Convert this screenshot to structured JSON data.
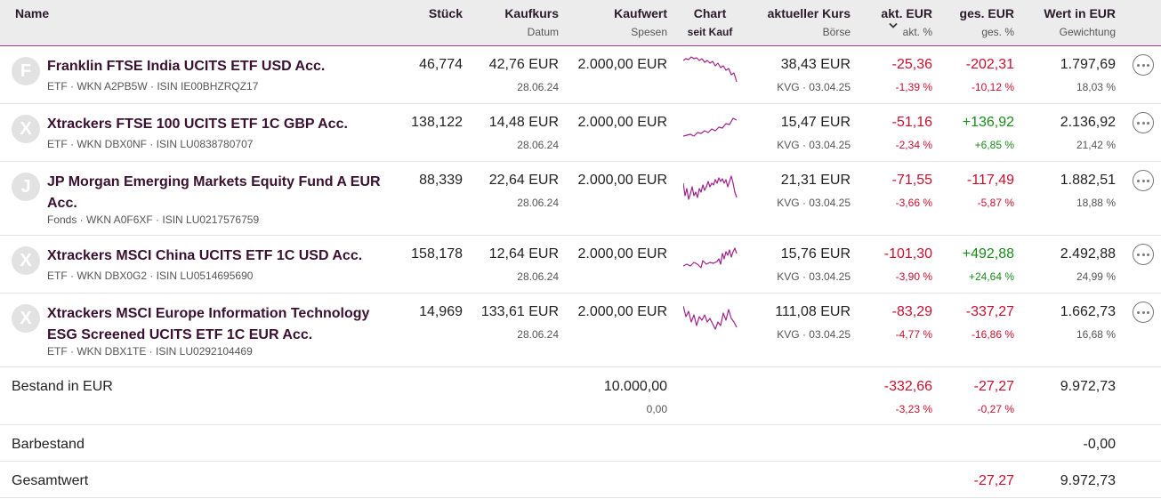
{
  "header": {
    "name": "Name",
    "stueck": "Stück",
    "kaufkurs": "Kaufkurs",
    "datum": "Datum",
    "kaufwert": "Kaufwert",
    "spesen": "Spesen",
    "chart": "Chart",
    "seit_kauf": "seit Kauf",
    "aktueller_kurs": "aktueller Kurs",
    "boerse": "Börse",
    "akt_eur": "akt. EUR",
    "akt_pct": "akt. %",
    "ges_eur": "ges. EUR",
    "ges_pct": "ges. %",
    "wert_eur": "Wert in EUR",
    "gewichtung": "Gewichtung"
  },
  "colors": {
    "negative": "#c8102e",
    "positive": "#1a8a1a",
    "spark": "#a0208c",
    "accent": "#9a3c8c"
  },
  "positions": [
    {
      "initial": "F",
      "name": "Franklin FTSE India UCITS ETF USD Acc.",
      "meta": "ETF · WKN A2PB5W · ISIN IE00BHZRQZ17",
      "stueck": "46,774",
      "kaufkurs": "42,76 EUR",
      "datum": "28.06.24",
      "kaufwert": "2.000,00 EUR",
      "kurs": "38,43 EUR",
      "boerse": "KVG · 03.04.25",
      "akt_eur": "-25,36",
      "akt_pct": "-1,39 %",
      "ges_eur": "-202,31",
      "ges_pct": "-10,12 %",
      "wert": "1.797,69",
      "gewichtung": "18,03 %",
      "spark_icon": "sparkline-chart-icon",
      "more_icon": "more-options-icon"
    },
    {
      "initial": "X",
      "name": "Xtrackers FTSE 100 UCITS ETF 1C GBP Acc.",
      "meta": "ETF · WKN DBX0NF · ISIN LU0838780707",
      "stueck": "138,122",
      "kaufkurs": "14,48 EUR",
      "datum": "28.06.24",
      "kaufwert": "2.000,00 EUR",
      "kurs": "15,47 EUR",
      "boerse": "KVG · 03.04.25",
      "akt_eur": "-51,16",
      "akt_pct": "-2,34 %",
      "ges_eur": "+136,92",
      "ges_pct": "+6,85 %",
      "wert": "2.136,92",
      "gewichtung": "21,42 %",
      "spark_icon": "sparkline-chart-icon",
      "more_icon": "more-options-icon"
    },
    {
      "initial": "J",
      "name": "JP Morgan Emerging Markets Equity Fund A EUR Acc.",
      "meta": "Fonds · WKN A0F6XF · ISIN LU0217576759",
      "stueck": "88,339",
      "kaufkurs": "22,64 EUR",
      "datum": "28.06.24",
      "kaufwert": "2.000,00 EUR",
      "kurs": "21,31 EUR",
      "boerse": "KVG · 03.04.25",
      "akt_eur": "-71,55",
      "akt_pct": "-3,66 %",
      "ges_eur": "-117,49",
      "ges_pct": "-5,87 %",
      "wert": "1.882,51",
      "gewichtung": "18,88 %",
      "spark_icon": "sparkline-chart-icon",
      "more_icon": "more-options-icon"
    },
    {
      "initial": "X",
      "name": "Xtrackers MSCI China UCITS ETF 1C USD Acc.",
      "meta": "ETF · WKN DBX0G2 · ISIN LU0514695690",
      "stueck": "158,178",
      "kaufkurs": "12,64 EUR",
      "datum": "28.06.24",
      "kaufwert": "2.000,00 EUR",
      "kurs": "15,76 EUR",
      "boerse": "KVG · 03.04.25",
      "akt_eur": "-101,30",
      "akt_pct": "-3,90 %",
      "ges_eur": "+492,88",
      "ges_pct": "+24,64 %",
      "wert": "2.492,88",
      "gewichtung": "24,99 %",
      "spark_icon": "sparkline-chart-icon",
      "more_icon": "more-options-icon"
    },
    {
      "initial": "X",
      "name": "Xtrackers MSCI Europe Information Technology ESG Screened UCITS ETF 1C EUR Acc.",
      "meta": "ETF · WKN DBX1TE · ISIN LU0292104469",
      "stueck": "14,969",
      "kaufkurs": "133,61 EUR",
      "datum": "28.06.24",
      "kaufwert": "2.000,00 EUR",
      "kurs": "111,08 EUR",
      "boerse": "KVG · 03.04.25",
      "akt_eur": "-83,29",
      "akt_pct": "-4,77 %",
      "ges_eur": "-337,27",
      "ges_pct": "-16,86 %",
      "wert": "1.662,73",
      "gewichtung": "16,68 %",
      "spark_icon": "sparkline-chart-icon",
      "more_icon": "more-options-icon"
    }
  ],
  "summary": {
    "bestand_label": "Bestand in EUR",
    "kaufwert": "10.000,00",
    "spesen": "0,00",
    "akt_eur": "-332,66",
    "akt_pct": "-3,23 %",
    "ges_eur": "-27,27",
    "ges_pct": "-0,27 %",
    "wert": "9.972,73",
    "bar_label": "Barbestand",
    "bar_wert": "-0,00",
    "gesamt_label": "Gesamtwert",
    "gesamt_ges_eur": "-27,27",
    "gesamt_wert": "9.972,73"
  }
}
